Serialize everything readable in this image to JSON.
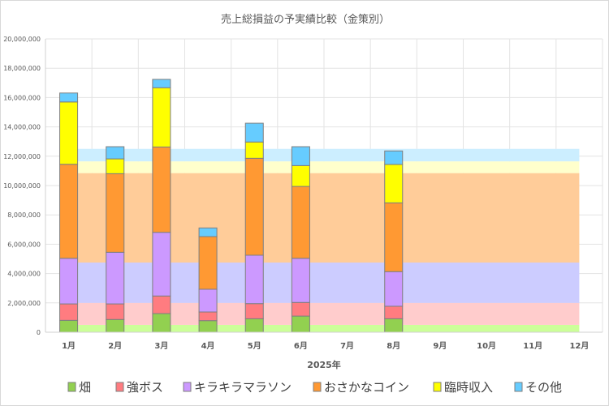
{
  "chart_data": {
    "type": "bar",
    "stacked": true,
    "title": "売上総損益の予実績比較（金策別）",
    "xlabel": "2025年",
    "ylabel": "",
    "ylim": [
      0,
      20000000
    ],
    "yticks": [
      0,
      2000000,
      4000000,
      6000000,
      8000000,
      10000000,
      12000000,
      14000000,
      16000000,
      18000000,
      20000000
    ],
    "ytick_labels": [
      "0",
      "2,000,000",
      "4,000,000",
      "6,000,000",
      "8,000,000",
      "10,000,000",
      "12,000,000",
      "14,000,000",
      "16,000,000",
      "18,000,000",
      "20,000,000"
    ],
    "grid": true,
    "legend_position": "bottom",
    "categories": [
      "1月",
      "2月",
      "3月",
      "4月",
      "5月",
      "6月",
      "7月",
      "8月",
      "9月",
      "10月",
      "11月",
      "12月"
    ],
    "series": [
      {
        "name": "畑",
        "color": "#92d050",
        "budget_color": "#ccff99",
        "values": [
          810000,
          870000,
          1270000,
          790000,
          920000,
          1100000,
          null,
          920000,
          null,
          null,
          null,
          null
        ],
        "budget": 500000
      },
      {
        "name": "強ボス",
        "color": "#ff7c80",
        "budget_color": "#ffcccc",
        "values": [
          1120000,
          1060000,
          1200000,
          590000,
          1030000,
          930000,
          null,
          850000,
          null,
          null,
          null,
          null
        ],
        "budget": 1500000
      },
      {
        "name": "キラキラマラソン",
        "color": "#cc99ff",
        "budget_color": "#ccccff",
        "values": [
          3110000,
          3520000,
          4340000,
          1550000,
          3300000,
          3010000,
          null,
          2360000,
          null,
          null,
          null,
          null
        ],
        "budget": 2750000
      },
      {
        "name": "おさかなコイン",
        "color": "#ff9933",
        "budget_color": "#ffcc99",
        "values": [
          6410000,
          5360000,
          5820000,
          3590000,
          6610000,
          4900000,
          null,
          4690000,
          null,
          null,
          null,
          null
        ],
        "budget": 6100000
      },
      {
        "name": "臨時収入",
        "color": "#ffff00",
        "budget_color": "#ffffcc",
        "values": [
          4250000,
          1010000,
          4040000,
          0,
          1110000,
          1420000,
          null,
          2620000,
          null,
          null,
          null,
          null
        ],
        "budget": 800000
      },
      {
        "name": "その他",
        "color": "#66ccff",
        "budget_color": "#cceeff",
        "values": [
          610000,
          830000,
          570000,
          590000,
          1280000,
          1290000,
          null,
          920000,
          null,
          null,
          null,
          null
        ],
        "budget": 850000
      }
    ]
  }
}
